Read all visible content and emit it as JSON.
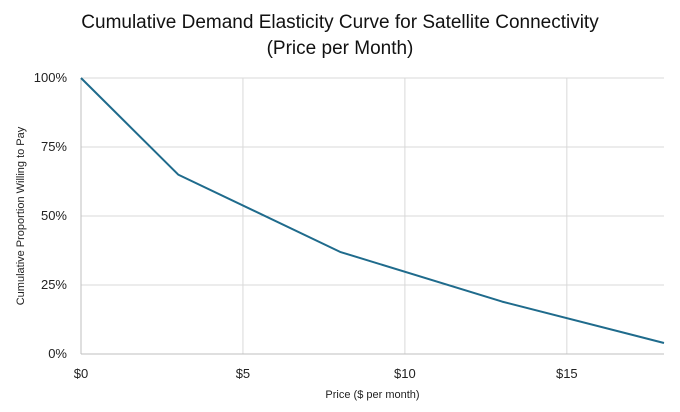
{
  "colors": {
    "line": "#1f6b8c",
    "grid": "#d9d9d9",
    "axis": "#bfbfbf"
  },
  "chart_data": {
    "type": "line",
    "title_lines": [
      "Cumulative Demand Elasticity Curve for Satellite Connectivity",
      "(Price per Month)"
    ],
    "xlabel": "Price ($ per month)",
    "ylabel": "Cumulative Proportion Willing to Pay",
    "xlim": [
      0,
      18
    ],
    "ylim": [
      0,
      100
    ],
    "x_ticks": [
      {
        "value": 0,
        "label": "$0"
      },
      {
        "value": 5,
        "label": "$5"
      },
      {
        "value": 10,
        "label": "$10"
      },
      {
        "value": 15,
        "label": "$15"
      }
    ],
    "y_ticks": [
      {
        "value": 0,
        "label": "0%"
      },
      {
        "value": 25,
        "label": "25%"
      },
      {
        "value": 50,
        "label": "50%"
      },
      {
        "value": 75,
        "label": "75%"
      },
      {
        "value": 100,
        "label": "100%"
      }
    ],
    "series": [
      {
        "name": "Cumulative Proportion Willing to Pay",
        "points": [
          {
            "x": 0,
            "y": 100
          },
          {
            "x": 3,
            "y": 65
          },
          {
            "x": 8,
            "y": 37
          },
          {
            "x": 13,
            "y": 19
          },
          {
            "x": 18,
            "y": 4
          }
        ]
      }
    ]
  }
}
